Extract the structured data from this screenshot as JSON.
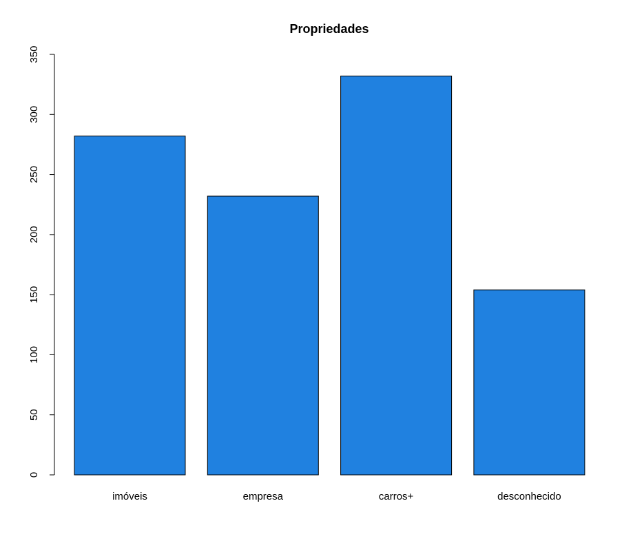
{
  "chart_data": {
    "type": "bar",
    "title": "Propriedades",
    "xlabel": "",
    "ylabel": "",
    "categories": [
      "imóveis",
      "empresa",
      "carros+",
      "desconhecido"
    ],
    "values": [
      282,
      232,
      332,
      154
    ],
    "ylim": [
      0,
      350
    ],
    "yticks": [
      "0",
      "50",
      "100",
      "150",
      "200",
      "250",
      "300",
      "350"
    ],
    "bar_color": "#2081E0",
    "border_color": "#000000",
    "grid": false,
    "legend": "none"
  }
}
